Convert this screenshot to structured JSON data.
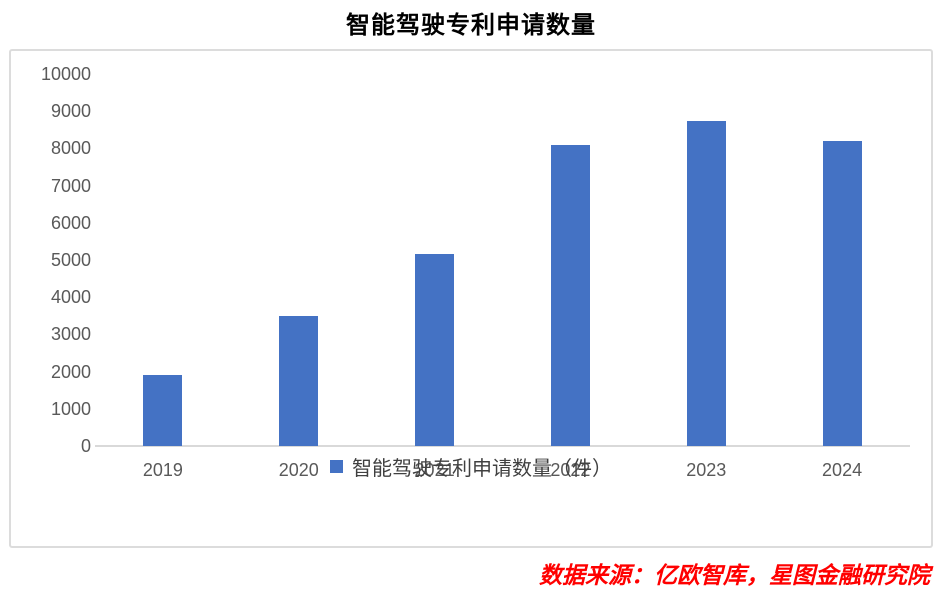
{
  "page": {
    "source": "数据来源：亿欧智库，星图金融研究院"
  },
  "chart_data": {
    "type": "bar",
    "title": "智能驾驶专利申请数量",
    "categories": [
      "2019",
      "2020",
      "2021",
      "2022",
      "2023",
      "2024"
    ],
    "series": [
      {
        "name": "智能驾驶专利申请数量（件）",
        "values": [
          1900,
          3500,
          5150,
          8100,
          8750,
          8200
        ]
      }
    ],
    "xlabel": "",
    "ylabel": "",
    "ylim": [
      0,
      10000
    ],
    "ytick_step": 1000,
    "grid": false,
    "legend_position": "bottom",
    "bar_color": "#4472c4",
    "axis_line_color": "#d9d9d9",
    "tick_label_color": "#595959",
    "source_color": "#ff0000"
  }
}
